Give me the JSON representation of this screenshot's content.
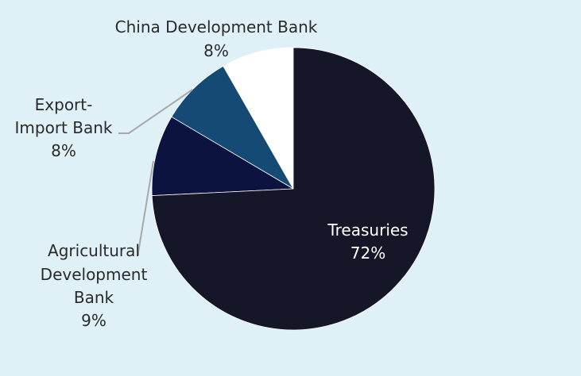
{
  "chart_data": {
    "type": "pie",
    "title": "",
    "slices": [
      {
        "label_lines": [
          "China Development Bank"
        ],
        "percent_label": "8%",
        "value": 8,
        "color": "#ffffff"
      },
      {
        "label_lines": [
          "Export-",
          "Import Bank"
        ],
        "percent_label": "8%",
        "value": 8,
        "color": "#154a75"
      },
      {
        "label_lines": [
          "Agricultural",
          "Development",
          "Bank"
        ],
        "percent_label": "9%",
        "value": 9,
        "color": "#0c1340"
      },
      {
        "label_lines": [
          "Treasuries"
        ],
        "percent_label": "72%",
        "value": 72,
        "color": "#151628"
      }
    ],
    "start_angle_degrees": 0,
    "direction": "counterclockwise",
    "background_color": "#dff0f6",
    "leader_line_color": "#a8a8a8"
  }
}
